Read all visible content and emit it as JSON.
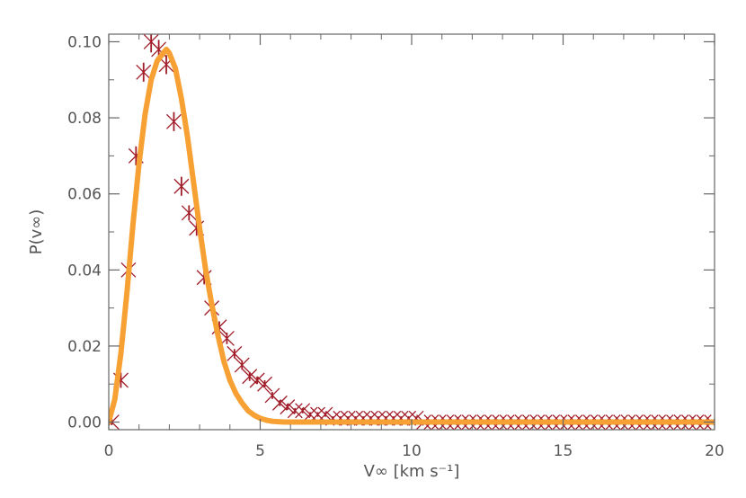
{
  "chart_data": {
    "type": "scatter",
    "xlabel": "V∞ [km s⁻¹]",
    "ylabel": "P(v∞)",
    "xlim": [
      0,
      20
    ],
    "ylim": [
      -0.002,
      0.102
    ],
    "xticks": [
      0,
      5,
      10,
      15,
      20
    ],
    "yticks": [
      0.0,
      0.02,
      0.04,
      0.06,
      0.08,
      0.1
    ],
    "xtick_labels": [
      "0",
      "5",
      "10",
      "15",
      "20"
    ],
    "ytick_labels": [
      "0.00",
      "0.02",
      "0.04",
      "0.06",
      "0.08",
      "0.10"
    ],
    "grid": false,
    "series": [
      {
        "style": "markers-with-errorbars",
        "color": "#a01c28",
        "marker": "x",
        "x": [
          0.1,
          0.4,
          0.65,
          0.9,
          1.15,
          1.4,
          1.65,
          1.9,
          2.15,
          2.4,
          2.65,
          2.9,
          3.15,
          3.4,
          3.65,
          3.9,
          4.15,
          4.4,
          4.65,
          4.9,
          5.15,
          5.4,
          5.65,
          5.9,
          6.15,
          6.4,
          6.65,
          6.9,
          7.15,
          7.4,
          7.65,
          7.9,
          8.15,
          8.4,
          8.65,
          8.9,
          9.15,
          9.4,
          9.65,
          9.9,
          10.15,
          10.4,
          10.65,
          10.9,
          11.15,
          11.4,
          11.65,
          11.9,
          12.15,
          12.4,
          12.65,
          12.9,
          13.15,
          13.4,
          13.65,
          13.9,
          14.15,
          14.4,
          14.65,
          14.9,
          15.15,
          15.4,
          15.65,
          15.9,
          16.15,
          16.4,
          16.65,
          16.9,
          17.15,
          17.4,
          17.65,
          17.9,
          18.15,
          18.4,
          18.65,
          18.9,
          19.15,
          19.4,
          19.65,
          19.9
        ],
        "y": [
          0.0,
          0.011,
          0.04,
          0.07,
          0.092,
          0.1,
          0.098,
          0.094,
          0.079,
          0.062,
          0.055,
          0.051,
          0.038,
          0.03,
          0.025,
          0.022,
          0.018,
          0.015,
          0.012,
          0.011,
          0.01,
          0.007,
          0.005,
          0.004,
          0.003,
          0.003,
          0.002,
          0.002,
          0.002,
          0.001,
          0.001,
          0.001,
          0.001,
          0.001,
          0.001,
          0.001,
          0.001,
          0.001,
          0.001,
          0.001,
          0.001,
          0.0,
          0.0,
          0.0,
          0.0,
          0.0,
          0.0,
          0.0,
          0.0,
          0.0,
          0.0,
          0.0,
          0.0,
          0.0,
          0.0,
          0.0,
          0.0,
          0.0,
          0.0,
          0.0,
          0.0,
          0.0,
          0.0,
          0.0,
          0.0,
          0.0,
          0.0,
          0.0,
          0.0,
          0.0,
          0.0,
          0.0,
          0.0,
          0.0,
          0.0,
          0.0,
          0.0,
          0.0,
          0.0,
          0.0
        ],
        "yerr": [
          0.0008,
          0.002,
          0.0025,
          0.0025,
          0.0025,
          0.0028,
          0.0025,
          0.0025,
          0.0025,
          0.0025,
          0.002,
          0.002,
          0.0018,
          0.0015,
          0.0015,
          0.0015,
          0.0012,
          0.0012,
          0.0012,
          0.001,
          0.001,
          0.0009,
          0.0008,
          0.0008,
          0.0007,
          0.0007,
          0.0006,
          0.0006,
          0.0006,
          0.0005,
          0.0005,
          0.0005,
          0.0005,
          0.0005,
          0.0005,
          0.0005,
          0.0005,
          0.0005,
          0.0005,
          0.0005,
          0.0005,
          0.0004,
          0.0004,
          0.0004,
          0.0004,
          0.0004,
          0.0004,
          0.0004,
          0.0004,
          0.0004,
          0.0004,
          0.0004,
          0.0004,
          0.0004,
          0.0004,
          0.0004,
          0.0004,
          0.0004,
          0.0004,
          0.0004,
          0.0004,
          0.0004,
          0.0004,
          0.0004,
          0.0004,
          0.0004,
          0.0004,
          0.0004,
          0.0004,
          0.0004,
          0.0004,
          0.0004,
          0.0004,
          0.0004,
          0.0004,
          0.0004,
          0.0004,
          0.0004,
          0.0004,
          0.0004
        ]
      },
      {
        "style": "line",
        "color": "#f7a134",
        "x": [
          0.0,
          0.2,
          0.4,
          0.6,
          0.8,
          1.0,
          1.2,
          1.4,
          1.6,
          1.8,
          1.9,
          2.0,
          2.2,
          2.4,
          2.6,
          2.8,
          3.0,
          3.2,
          3.4,
          3.6,
          3.8,
          4.0,
          4.2,
          4.4,
          4.6,
          4.8,
          5.0,
          5.2,
          5.4,
          5.6,
          5.8,
          6.0,
          7.0,
          8.0,
          10.0,
          12.0,
          15.0,
          17.0,
          20.0
        ],
        "y": [
          0.0,
          0.006,
          0.018,
          0.034,
          0.052,
          0.068,
          0.081,
          0.09,
          0.095,
          0.097,
          0.098,
          0.097,
          0.093,
          0.085,
          0.075,
          0.063,
          0.051,
          0.04,
          0.031,
          0.023,
          0.016,
          0.011,
          0.0075,
          0.005,
          0.003,
          0.0018,
          0.001,
          0.0005,
          0.0002,
          0.0001,
          0.0,
          0.0,
          0.0,
          0.0,
          0.0,
          0.0,
          0.0,
          0.0,
          0.0
        ]
      }
    ]
  }
}
